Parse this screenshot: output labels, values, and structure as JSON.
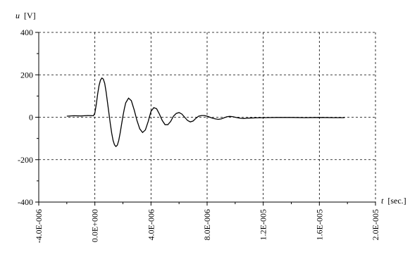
{
  "chart_data": {
    "type": "line",
    "xlabel_var": "t",
    "xlabel_unit": "[sec.]",
    "ylabel_var": "u",
    "ylabel_unit": "[V]",
    "xlim": [
      -4e-06,
      2e-05
    ],
    "ylim": [
      -400,
      400
    ],
    "x_ticks": [
      -4e-06,
      0,
      4e-06,
      8e-06,
      1.2e-05,
      1.6e-05,
      2e-05
    ],
    "x_tick_labels": [
      "-4.0E-006",
      "0.0E+000",
      "4.0E-006",
      "8.0E-006",
      "1.2E-005",
      "1.6E-005",
      "2.0E-005"
    ],
    "y_ticks": [
      -400,
      -200,
      0,
      200,
      400
    ],
    "y_tick_labels": [
      "-400",
      "-200",
      "0",
      "200",
      "400"
    ],
    "grid": true,
    "grid_style": "dashed",
    "line_color": "#000000",
    "series": [
      {
        "x": [
          -2e-06,
          -1.5e-06,
          -1e-06,
          -5e-07,
          -1e-07,
          0,
          1e-07,
          2e-07,
          3e-07,
          4e-07,
          5e-07,
          6e-07,
          7e-07,
          8e-07,
          9e-07,
          1e-06,
          1.1e-06,
          1.2e-06,
          1.3e-06,
          1.4e-06,
          1.5e-06,
          1.6e-06,
          1.7e-06,
          1.8e-06,
          1.9e-06,
          2e-06,
          2.1e-06,
          2.2e-06,
          2.4e-06,
          2.6e-06,
          2.8e-06,
          3e-06,
          3.2e-06,
          3.4e-06,
          3.6e-06,
          3.8e-06,
          4e-06,
          4.2e-06,
          4.4e-06,
          4.6e-06,
          4.8e-06,
          5e-06,
          5.2e-06,
          5.4e-06,
          5.6e-06,
          5.8e-06,
          6e-06,
          6.2e-06,
          6.4e-06,
          6.6e-06,
          6.8e-06,
          7e-06,
          7.2e-06,
          7.4e-06,
          7.6e-06,
          7.8e-06,
          8e-06,
          8.2e-06,
          8.4e-06,
          8.6e-06,
          8.8e-06,
          9e-06,
          9.2e-06,
          9.4e-06,
          9.6e-06,
          9.8e-06,
          1e-05,
          1.02e-05,
          1.04e-05,
          1.06e-05,
          1.08e-05,
          1.1e-05,
          1.15e-05,
          1.2e-05,
          1.3e-05,
          1.4e-05,
          1.5e-05,
          1.6e-05,
          1.7e-05,
          1.78e-05
        ],
        "y": [
          5,
          7,
          6,
          8,
          7,
          20,
          60,
          110,
          150,
          175,
          185,
          180,
          160,
          120,
          70,
          20,
          -30,
          -75,
          -110,
          -130,
          -138,
          -132,
          -110,
          -75,
          -35,
          5,
          40,
          68,
          90,
          78,
          35,
          -15,
          -55,
          -72,
          -60,
          -20,
          28,
          45,
          40,
          15,
          -15,
          -35,
          -35,
          -20,
          5,
          18,
          22,
          15,
          0,
          -15,
          -22,
          -18,
          -5,
          5,
          8,
          8,
          5,
          0,
          -5,
          -8,
          -10,
          -8,
          -3,
          2,
          4,
          3,
          0,
          -3,
          -5,
          -6,
          -5,
          -4,
          -3,
          -2,
          -1,
          -1,
          -2,
          -1,
          -2,
          -2
        ]
      }
    ]
  }
}
